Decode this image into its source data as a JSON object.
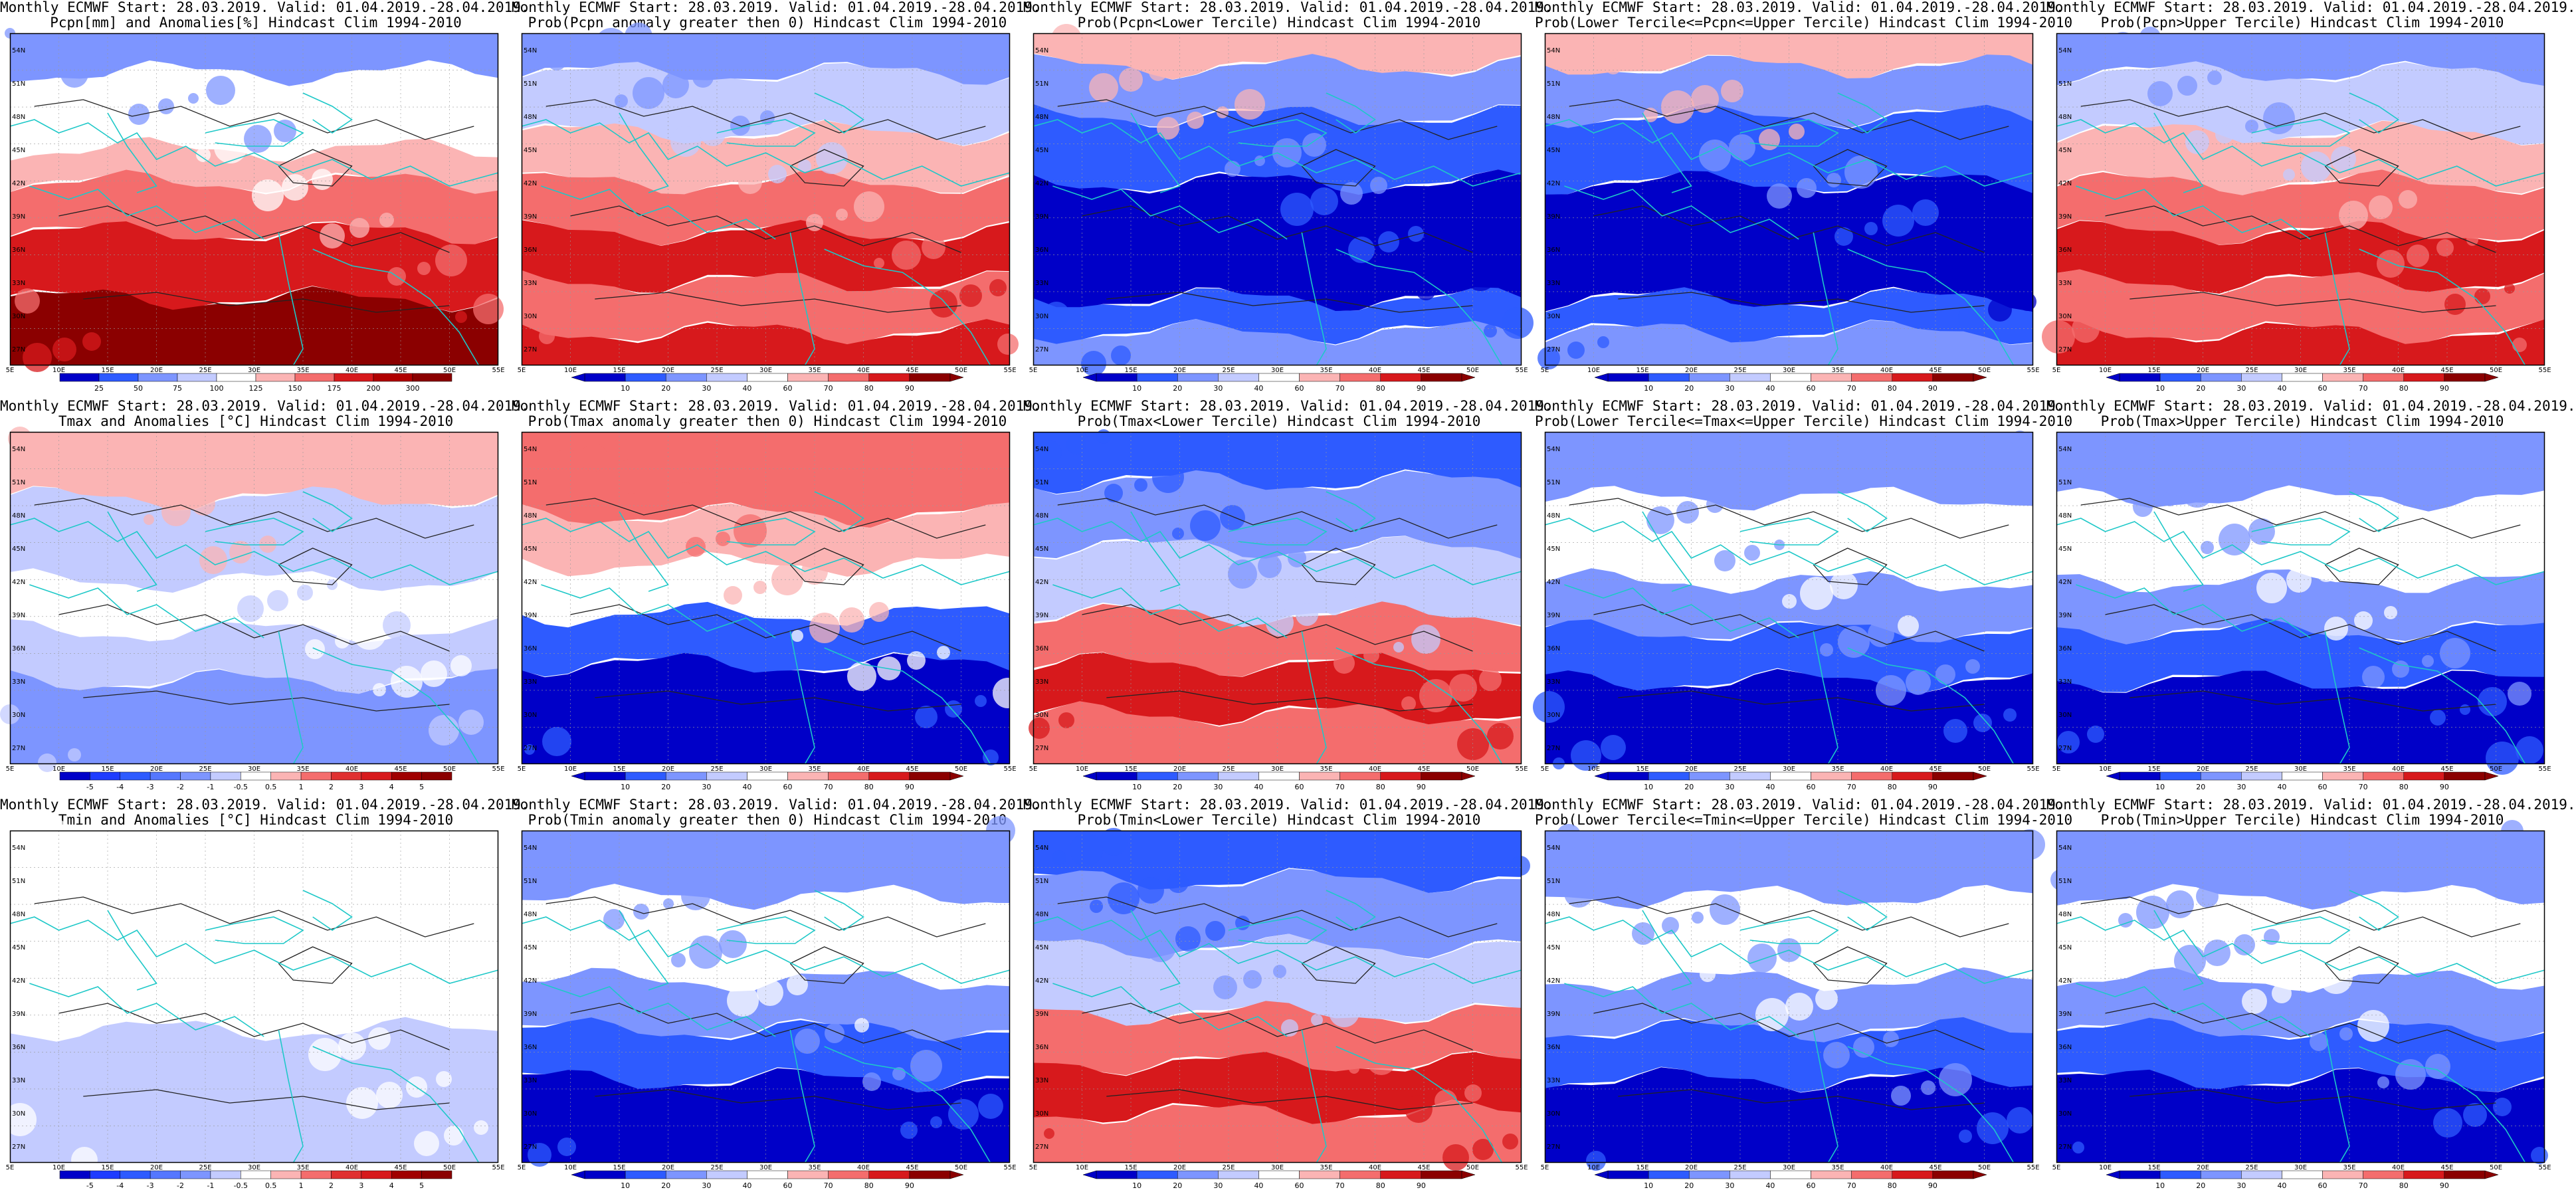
{
  "panels": [
    {
      "line1": "Monthly ECMWF Start: 28.03.2019. Valid: 01.04.2019.-28.04.2019.",
      "line2": "Pcpn[mm] and Anomalies[%] Hindcast Clim 1994-2010",
      "scheme": "anom_pcpn",
      "cbar_type": "flat",
      "cbar_labels": [
        "25",
        "50",
        "75",
        "100",
        "125",
        "150",
        "175",
        "200",
        "300"
      ]
    },
    {
      "line1": "Monthly ECMWF Start: 28.03.2019. Valid: 01.04.2019.-28.04.2019.",
      "line2": "Prob(Pcpn anomaly greater then 0) Hindcast Clim 1994-2010",
      "scheme": "prob_hot",
      "cbar_type": "arrow",
      "cbar_labels": [
        "10",
        "20",
        "30",
        "40",
        "60",
        "70",
        "80",
        "90"
      ]
    },
    {
      "line1": "Monthly ECMWF Start: 28.03.2019. Valid: 01.04.2019.-28.04.2019.",
      "line2": "Prob(Pcpn<Lower Tercile) Hindcast Clim 1994-2010",
      "scheme": "prob_cold",
      "cbar_type": "arrow",
      "cbar_labels": [
        "10",
        "20",
        "30",
        "40",
        "60",
        "70",
        "80",
        "90"
      ]
    },
    {
      "line1": "Monthly ECMWF Start: 28.03.2019. Valid: 01.04.2019.-28.04.2019.",
      "line2": "Prob(Lower Tercile<=Pcpn<=Upper Tercile) Hindcast Clim 1994-2010",
      "scheme": "prob_cold",
      "cbar_type": "arrow",
      "cbar_labels": [
        "10",
        "20",
        "30",
        "40",
        "60",
        "70",
        "80",
        "90"
      ]
    },
    {
      "line1": "Monthly ECMWF Start: 28.03.2019. Valid: 01.04.2019.-28.04.2019.",
      "line2": "Prob(Pcpn>Upper Tercile) Hindcast Clim 1994-2010",
      "scheme": "prob_hot",
      "cbar_type": "arrow",
      "cbar_labels": [
        "10",
        "20",
        "30",
        "40",
        "60",
        "70",
        "80",
        "90"
      ]
    },
    {
      "line1": "Monthly ECMWF Start: 28.03.2019. Valid: 01.04.2019.-28.04.2019.",
      "line2": "Tmax and Anomalies [°C] Hindcast Clim 1994-2010",
      "scheme": "anom_temp",
      "cbar_type": "flat",
      "cbar_labels": [
        "-5",
        "-4",
        "-3",
        "-2",
        "-1",
        "-0.5",
        "0.5",
        "1",
        "2",
        "3",
        "4",
        "5"
      ]
    },
    {
      "line1": "Monthly ECMWF Start: 28.03.2019. Valid: 01.04.2019.-28.04.2019.",
      "line2": "Prob(Tmax anomaly greater then 0) Hindcast Clim 1994-2010",
      "scheme": "prob_cold_north",
      "cbar_type": "arrow",
      "cbar_labels": [
        "10",
        "20",
        "30",
        "40",
        "60",
        "70",
        "80",
        "90"
      ]
    },
    {
      "line1": "Monthly ECMWF Start: 28.03.2019. Valid: 01.04.2019.-28.04.2019.",
      "line2": "Prob(Tmax<Lower Tercile) Hindcast Clim 1994-2010",
      "scheme": "prob_hot_south",
      "cbar_type": "arrow",
      "cbar_labels": [
        "10",
        "20",
        "30",
        "40",
        "60",
        "70",
        "80",
        "90"
      ]
    },
    {
      "line1": "Monthly ECMWF Start: 28.03.2019. Valid: 01.04.2019.-28.04.2019.",
      "line2": "Prob(Lower Tercile<=Tmax<=Upper Tercile) Hindcast Clim 1994-2010",
      "scheme": "prob_cold_south",
      "cbar_type": "arrow",
      "cbar_labels": [
        "10",
        "20",
        "30",
        "40",
        "60",
        "70",
        "80",
        "90"
      ]
    },
    {
      "line1": "Monthly ECMWF Start: 28.03.2019. Valid: 01.04.2019.-28.04.2019.",
      "line2": "Prob(Tmax>Upper Tercile) Hindcast Clim 1994-2010",
      "scheme": "prob_cold_south",
      "cbar_type": "arrow",
      "cbar_labels": [
        "10",
        "20",
        "30",
        "40",
        "60",
        "70",
        "80",
        "90"
      ]
    },
    {
      "line1": "Monthly ECMWF Start: 28.03.2019. Valid: 01.04.2019.-28.04.2019.",
      "line2": "Tmin and Anomalies [°C] Hindcast Clim 1994-2010",
      "scheme": "anom_temp_light",
      "cbar_type": "flat",
      "cbar_labels": [
        "-5",
        "-4",
        "-3",
        "-2",
        "-1",
        "-0.5",
        "0.5",
        "1",
        "2",
        "3",
        "4",
        "5"
      ]
    },
    {
      "line1": "Monthly ECMWF Start: 28.03.2019. Valid: 01.04.2019.-28.04.2019.",
      "line2": "Prob(Tmin anomaly greater then 0) Hindcast Clim 1994-2010",
      "scheme": "prob_cold_south",
      "cbar_type": "arrow",
      "cbar_labels": [
        "10",
        "20",
        "30",
        "40",
        "60",
        "70",
        "80",
        "90"
      ]
    },
    {
      "line1": "Monthly ECMWF Start: 28.03.2019. Valid: 01.04.2019.-28.04.2019.",
      "line2": "Prob(Tmin<Lower Tercile) Hindcast Clim 1994-2010",
      "scheme": "prob_hot_south",
      "cbar_type": "arrow",
      "cbar_labels": [
        "10",
        "20",
        "30",
        "40",
        "60",
        "70",
        "80",
        "90"
      ]
    },
    {
      "line1": "Monthly ECMWF Start: 28.03.2019. Valid: 01.04.2019.-28.04.2019.",
      "line2": "Prob(Lower Tercile<=Tmin<=Upper Tercile) Hindcast Clim 1994-2010",
      "scheme": "prob_cold_south",
      "cbar_type": "arrow",
      "cbar_labels": [
        "10",
        "20",
        "30",
        "40",
        "60",
        "70",
        "80",
        "90"
      ]
    },
    {
      "line1": "Monthly ECMWF Start: 28.03.2019. Valid: 01.04.2019.-28.04.2019.",
      "line2": "Prob(Tmin>Upper Tercile) Hindcast Clim 1994-2010",
      "scheme": "prob_cold_south",
      "cbar_type": "arrow",
      "cbar_labels": [
        "10",
        "20",
        "30",
        "40",
        "60",
        "70",
        "80",
        "90"
      ]
    }
  ],
  "lon_labels": [
    "5E",
    "10E",
    "15E",
    "20E",
    "25E",
    "30E",
    "35E",
    "40E",
    "45E",
    "50E",
    "55E"
  ],
  "lat_labels": [
    "27N",
    "30N",
    "33N",
    "36N",
    "39N",
    "42N",
    "45N",
    "48N",
    "51N",
    "54N"
  ],
  "colors": {
    "coast": "#1ec8c8",
    "contour": "#222222",
    "red3": "#8b0000",
    "red2": "#d7191c",
    "red1": "#f46d6d",
    "red0": "#fbb4b4",
    "blue3": "#0000c8",
    "blue2": "#2e5bff",
    "blue1": "#7d95ff",
    "blue0": "#c3cbff",
    "white": "#ffffff"
  }
}
